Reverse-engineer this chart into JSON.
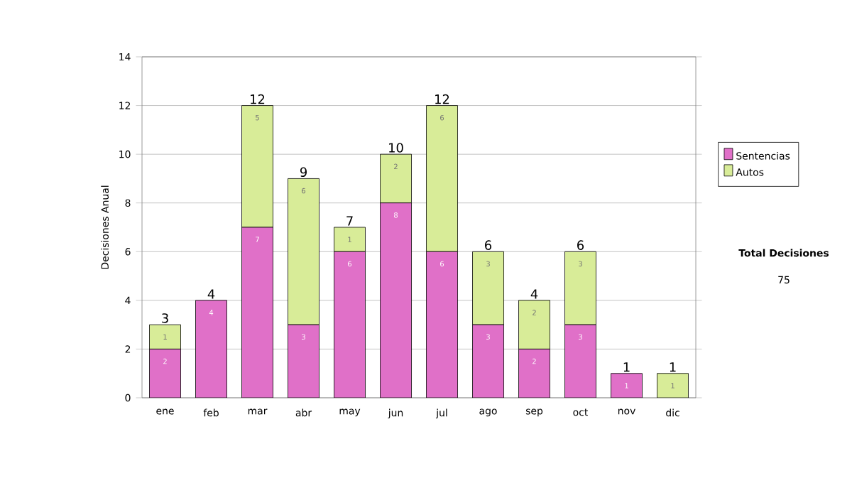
{
  "chart_data": {
    "type": "bar",
    "stacked": true,
    "ylabel": "Decisiones Anual",
    "categories": [
      "ene",
      "feb",
      "mar",
      "abr",
      "may",
      "jun",
      "jul",
      "ago",
      "sep",
      "oct",
      "nov",
      "dic"
    ],
    "series": [
      {
        "name": "Sentencias",
        "color": "#e070c8",
        "values": [
          2,
          4,
          7,
          3,
          6,
          8,
          6,
          3,
          2,
          3,
          1,
          0
        ],
        "value_labels": [
          "2",
          "4",
          "7",
          "3",
          "6",
          "8",
          "6",
          "3",
          "2",
          "3",
          "1",
          null
        ]
      },
      {
        "name": "Autos",
        "color": "#d8ec98",
        "values": [
          1,
          0,
          5,
          6,
          1,
          2,
          6,
          3,
          2,
          3,
          0,
          1
        ],
        "value_labels": [
          "1",
          null,
          "5",
          "6",
          "1",
          "2",
          "6",
          "3",
          "2",
          "3",
          null,
          "1"
        ]
      }
    ],
    "totals": [
      "3",
      "4",
      "12",
      "9",
      "7",
      "10",
      "12",
      "6",
      "4",
      "6",
      "1",
      "1"
    ],
    "ylim": [
      0,
      14
    ],
    "yticks": [
      0,
      2,
      4,
      6,
      8,
      10,
      12,
      14
    ],
    "grid": "y",
    "legend": "right",
    "annotations": [
      "Total Decisiones",
      "75"
    ]
  }
}
